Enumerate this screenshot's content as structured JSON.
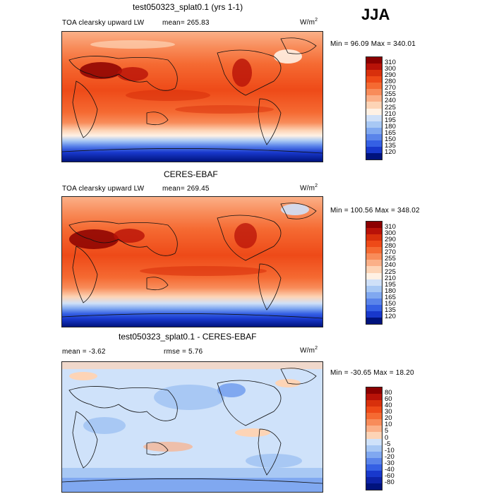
{
  "season": "JJA",
  "units": "W/m",
  "units_exp": "2",
  "panels": [
    {
      "title": "test050323_splat0.1 (yrs 1-1)",
      "variable": "TOA clearsky upward LW",
      "mean": "mean=  265.83",
      "minmax": "Min =   96.09 Max =  340.01"
    },
    {
      "title": "CERES-EBAF",
      "variable": "TOA clearsky upward LW",
      "mean": "mean=  269.45",
      "minmax": "Min = 100.56 Max =  348.02"
    },
    {
      "title": "test050323_splat0.1 - CERES-EBAF",
      "mean": "mean =   -3.62",
      "rmse": "rmse =    5.76",
      "minmax": "Min = -30.65 Max =   18.20"
    }
  ],
  "colorbar_abs": {
    "labels": [
      "310",
      "300",
      "290",
      "280",
      "270",
      "255",
      "240",
      "225",
      "210",
      "195",
      "180",
      "165",
      "150",
      "135",
      "120"
    ],
    "colors": [
      "#8b0000",
      "#b81208",
      "#d8300c",
      "#ee4a18",
      "#f56a32",
      "#f88c5a",
      "#fbb088",
      "#fdd4b6",
      "#fff1e4",
      "#cfe0f8",
      "#a8c8f4",
      "#80a8f0",
      "#5a84ea",
      "#3560e4",
      "#1838cc",
      "#00137d"
    ]
  },
  "colorbar_diff": {
    "labels": [
      "80",
      "60",
      "40",
      "30",
      "20",
      "10",
      "5",
      "0",
      "-5",
      "-10",
      "-20",
      "-30",
      "-40",
      "-60",
      "-80"
    ],
    "colors": [
      "#8b0000",
      "#b81208",
      "#d8300c",
      "#ee4a18",
      "#f56a32",
      "#f88c5a",
      "#fbb088",
      "#fdd4b6",
      "#cfe2fa",
      "#a8c8f4",
      "#80a8f0",
      "#5a84ea",
      "#3560e4",
      "#1838cc",
      "#0d23a8",
      "#00137d"
    ]
  }
}
